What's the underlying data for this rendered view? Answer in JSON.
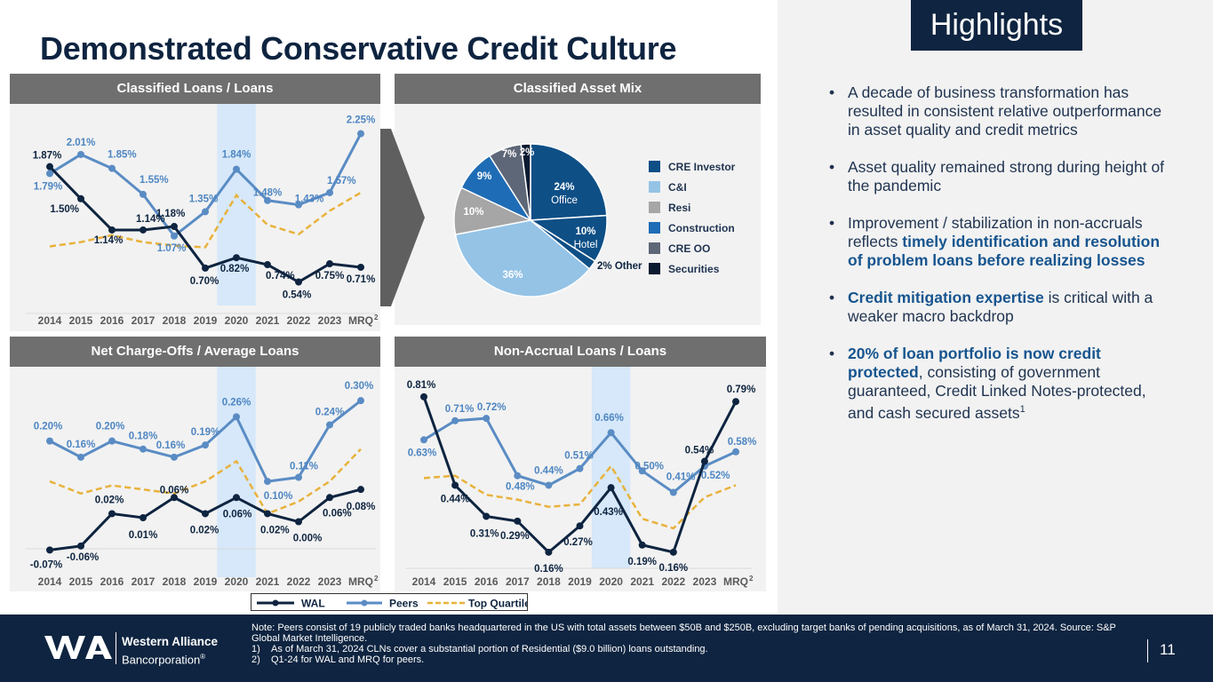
{
  "title": "Demonstrated Conservative Credit Culture",
  "highlights": {
    "title": "Highlights",
    "bullet1": "A decade of business transformation has resulted in consistent relative outperformance in asset quality and credit metrics",
    "bullet2": "Asset quality remained strong during height of the pandemic",
    "bullet3_pre": "Improvement / stabilization in non-accruals reflects ",
    "bullet3_hl": "timely identification and resolution of problem loans before realizing losses",
    "bullet4_hl": "Credit mitigation expertise",
    "bullet4_post": " is critical with a weaker macro backdrop",
    "bullet5_hl": "20% of loan portfolio is now credit protected",
    "bullet5_post": ", consisting of government guaranteed, Credit Linked Notes-protected, and cash secured assets",
    "bullet5_sup": "1"
  },
  "colors": {
    "wal": "#0e2440",
    "peers": "#5a8cc4",
    "topq": "#e8b23c",
    "highlight_band": "#d6e8f9"
  },
  "legend": {
    "wal": "WAL",
    "peers": "Peers",
    "topq": "Top Quartile"
  },
  "footer": {
    "logo_line1": "Western Alliance",
    "logo_line2": "Bancorporation",
    "logo_reg": "®",
    "note_main": "Note: Peers consist of 19 publicly traded banks headquartered in the US with total assets between $50B and $250B, excluding target banks of pending acquisitions, as of March 31, 2024. Source:  S&P Global Market Intelligence.",
    "note1_num": "1)",
    "note1": "As of March 31, 2024 CLNs cover a substantial portion of Residential ($9.0 billion) loans outstanding.",
    "note2_num": "2)",
    "note2": "Q1-24 for WAL and MRQ for peers.",
    "page_number": "11"
  },
  "chart_data": [
    {
      "type": "line",
      "title": "Classified Loans / Loans",
      "categories": [
        "2014",
        "2015",
        "2016",
        "2017",
        "2018",
        "2019",
        "2020",
        "2021",
        "2022",
        "2023",
        "MRQ"
      ],
      "last_category_sup": "2",
      "highlight_category": "2020",
      "series": [
        {
          "name": "WAL",
          "values": [
            1.87,
            1.5,
            1.14,
            1.14,
            1.18,
            0.7,
            0.82,
            0.74,
            0.54,
            0.75,
            0.71
          ],
          "labels": [
            "1.87%",
            "1.50%",
            "1.14%",
            "1.14%",
            "1.18%",
            "0.70%",
            "0.82%",
            "0.74%",
            "0.54%",
            "0.75%",
            "0.71%"
          ]
        },
        {
          "name": "Peers",
          "values": [
            1.79,
            2.01,
            1.85,
            1.55,
            1.07,
            1.35,
            1.84,
            1.48,
            1.43,
            1.57,
            2.25
          ],
          "labels": [
            "1.79%",
            "2.01%",
            "1.85%",
            "1.55%",
            "1.07%",
            "1.35%",
            "1.84%",
            "1.48%",
            "1.43%",
            "1.57%",
            "2.25%"
          ]
        },
        {
          "name": "Top Quartile",
          "values": [
            0.95,
            1.0,
            1.08,
            1.0,
            0.96,
            0.94,
            1.54,
            1.2,
            1.09,
            1.36,
            1.57
          ]
        }
      ],
      "ylim": [
        0.3,
        2.45
      ]
    },
    {
      "type": "pie",
      "title": "Classified Asset Mix",
      "slices": [
        {
          "label": "24%",
          "sublabel": "Office",
          "value": 24,
          "group": "CRE Investor",
          "color": "#0e4f86"
        },
        {
          "label": "10%",
          "sublabel": "Hotel",
          "value": 10,
          "group": "CRE Investor",
          "color": "#0e4f86"
        },
        {
          "label": "2% Other",
          "value": 2,
          "group": "CRE Investor",
          "color": "#0e4f86"
        },
        {
          "label": "36%",
          "value": 36,
          "group": "C&I",
          "color": "#94c3e6"
        },
        {
          "label": "10%",
          "value": 10,
          "group": "Resi",
          "color": "#a6a6a6"
        },
        {
          "label": "9%",
          "value": 9,
          "group": "Construction",
          "color": "#1f6cb6"
        },
        {
          "label": "7%",
          "value": 7,
          "group": "CRE OO",
          "color": "#5e6777"
        },
        {
          "label": "2%",
          "value": 2,
          "group": "Securities",
          "color": "#0b1a30"
        }
      ],
      "legend": [
        {
          "name": "CRE Investor",
          "color": "#0e4f86"
        },
        {
          "name": "C&I",
          "color": "#94c3e6"
        },
        {
          "name": "Resi",
          "color": "#a6a6a6"
        },
        {
          "name": "Construction",
          "color": "#1f6cb6"
        },
        {
          "name": "CRE OO",
          "color": "#5e6777"
        },
        {
          "name": "Securities",
          "color": "#0b1a30"
        }
      ]
    },
    {
      "type": "line",
      "title": "Net Charge-Offs / Average Loans",
      "categories": [
        "2014",
        "2015",
        "2016",
        "2017",
        "2018",
        "2019",
        "2020",
        "2021",
        "2022",
        "2023",
        "MRQ"
      ],
      "last_category_sup": "2",
      "highlight_category": "2020",
      "series": [
        {
          "name": "WAL",
          "values": [
            -0.07,
            -0.06,
            0.02,
            0.01,
            0.06,
            0.02,
            0.06,
            0.02,
            0.0,
            0.06,
            0.08
          ],
          "labels": [
            "-0.07%",
            "-0.06%",
            "0.02%",
            "0.01%",
            "0.06%",
            "0.02%",
            "0.06%",
            "0.02%",
            "0.00%",
            "0.06%",
            "0.08%"
          ]
        },
        {
          "name": "Peers",
          "values": [
            0.2,
            0.16,
            0.2,
            0.18,
            0.16,
            0.19,
            0.26,
            0.1,
            0.11,
            0.24,
            0.3
          ],
          "labels": [
            "0.20%",
            "0.16%",
            "0.20%",
            "0.18%",
            "0.16%",
            "0.19%",
            "0.26%",
            "0.10%",
            "0.11%",
            "0.24%",
            "0.30%"
          ]
        },
        {
          "name": "Top Quartile",
          "values": [
            0.1,
            0.07,
            0.09,
            0.08,
            0.07,
            0.1,
            0.15,
            0.02,
            0.05,
            0.1,
            0.18
          ]
        }
      ],
      "ylim": [
        -0.1,
        0.34
      ]
    },
    {
      "type": "line",
      "title": "Non-Accrual Loans / Loans",
      "categories": [
        "2014",
        "2015",
        "2016",
        "2017",
        "2018",
        "2019",
        "2020",
        "2021",
        "2022",
        "2023",
        "MRQ"
      ],
      "last_category_sup": "2",
      "highlight_category": "2020",
      "series": [
        {
          "name": "WAL",
          "values": [
            0.81,
            0.44,
            0.31,
            0.29,
            0.16,
            0.27,
            0.43,
            0.19,
            0.16,
            0.54,
            0.79
          ],
          "labels": [
            "0.81%",
            "0.44%",
            "0.31%",
            "0.29%",
            "0.16%",
            "0.27%",
            "0.43%",
            "0.19%",
            "0.16%",
            "0.54%",
            "0.79%"
          ]
        },
        {
          "name": "Peers",
          "values": [
            0.63,
            0.71,
            0.72,
            0.48,
            0.44,
            0.51,
            0.66,
            0.5,
            0.41,
            0.52,
            0.58
          ],
          "labels": [
            "0.63%",
            "0.71%",
            "0.72%",
            "0.48%",
            "0.44%",
            "0.51%",
            "0.66%",
            "0.50%",
            "0.41%",
            "0.52%",
            "0.58%"
          ]
        },
        {
          "name": "Top Quartile",
          "values": [
            0.47,
            0.48,
            0.4,
            0.38,
            0.35,
            0.36,
            0.52,
            0.3,
            0.26,
            0.39,
            0.44
          ]
        }
      ],
      "ylim": [
        0.1,
        0.88
      ]
    }
  ]
}
